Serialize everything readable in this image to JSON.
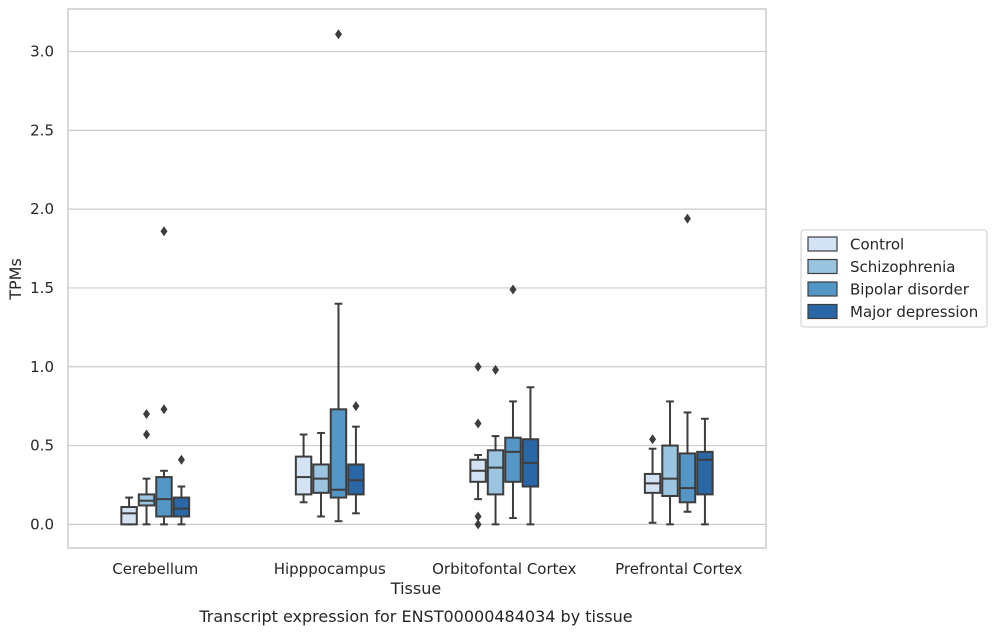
{
  "chart_data": {
    "type": "box",
    "xlabel": "Tissue",
    "ylabel": "TPMs",
    "caption": "Transcript expression for ENST00000484034 by tissue",
    "ylim": [
      -0.15,
      3.27
    ],
    "yticks": [
      0.0,
      0.5,
      1.0,
      1.5,
      2.0,
      2.5,
      3.0
    ],
    "ytick_labels": [
      "0.0",
      "0.5",
      "1.0",
      "1.5",
      "2.0",
      "2.5",
      "3.0"
    ],
    "grid": "horizontal",
    "legend_position": "right",
    "categories": [
      "Cerebellum",
      "Hipppocampus",
      "Orbitofontal Cortex",
      "Prefrontal Cortex"
    ],
    "series": [
      {
        "name": "Control",
        "color": "#d3e3f3",
        "boxes": [
          {
            "whislo": 0.0,
            "q1": 0.0,
            "med": 0.07,
            "q3": 0.11,
            "whishi": 0.17,
            "fliers": []
          },
          {
            "whislo": 0.14,
            "q1": 0.19,
            "med": 0.3,
            "q3": 0.43,
            "whishi": 0.57,
            "fliers": []
          },
          {
            "whislo": 0.16,
            "q1": 0.27,
            "med": 0.34,
            "q3": 0.41,
            "whishi": 0.44,
            "fliers": [
              0.64,
              1.0,
              0.05,
              0.0
            ]
          },
          {
            "whislo": 0.01,
            "q1": 0.2,
            "med": 0.26,
            "q3": 0.32,
            "whishi": 0.48,
            "fliers": [
              0.54
            ]
          }
        ]
      },
      {
        "name": "Schizophrenia",
        "color": "#9ac4e0",
        "boxes": [
          {
            "whislo": 0.0,
            "q1": 0.12,
            "med": 0.15,
            "q3": 0.19,
            "whishi": 0.29,
            "fliers": [
              0.57,
              0.7
            ]
          },
          {
            "whislo": 0.05,
            "q1": 0.2,
            "med": 0.29,
            "q3": 0.38,
            "whishi": 0.58,
            "fliers": []
          },
          {
            "whislo": 0.0,
            "q1": 0.19,
            "med": 0.36,
            "q3": 0.47,
            "whishi": 0.56,
            "fliers": [
              0.98
            ]
          },
          {
            "whislo": 0.0,
            "q1": 0.18,
            "med": 0.29,
            "q3": 0.5,
            "whishi": 0.78,
            "fliers": []
          }
        ]
      },
      {
        "name": "Bipolar disorder",
        "color": "#5497c6",
        "boxes": [
          {
            "whislo": 0.0,
            "q1": 0.05,
            "med": 0.16,
            "q3": 0.3,
            "whishi": 0.34,
            "fliers": [
              0.73,
              1.86
            ]
          },
          {
            "whislo": 0.02,
            "q1": 0.17,
            "med": 0.22,
            "q3": 0.73,
            "whishi": 1.4,
            "fliers": [
              3.11
            ]
          },
          {
            "whislo": 0.04,
            "q1": 0.27,
            "med": 0.46,
            "q3": 0.55,
            "whishi": 0.78,
            "fliers": [
              1.49
            ]
          },
          {
            "whislo": 0.08,
            "q1": 0.14,
            "med": 0.23,
            "q3": 0.45,
            "whishi": 0.71,
            "fliers": [
              1.94
            ]
          }
        ]
      },
      {
        "name": "Major depression",
        "color": "#2a67a7",
        "boxes": [
          {
            "whislo": 0.0,
            "q1": 0.05,
            "med": 0.1,
            "q3": 0.17,
            "whishi": 0.24,
            "fliers": [
              0.41
            ]
          },
          {
            "whislo": 0.07,
            "q1": 0.19,
            "med": 0.28,
            "q3": 0.38,
            "whishi": 0.62,
            "fliers": [
              0.75
            ]
          },
          {
            "whislo": 0.0,
            "q1": 0.24,
            "med": 0.39,
            "q3": 0.54,
            "whishi": 0.87,
            "fliers": []
          },
          {
            "whislo": 0.0,
            "q1": 0.19,
            "med": 0.41,
            "q3": 0.46,
            "whishi": 0.67,
            "fliers": []
          }
        ]
      }
    ],
    "colors": {
      "grid": "#cccccc",
      "frame": "#cccccc",
      "line": "#3d3d3d",
      "text": "#262626"
    }
  }
}
